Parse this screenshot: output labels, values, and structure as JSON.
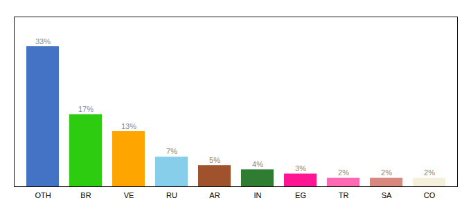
{
  "chart_data": {
    "type": "bar",
    "categories": [
      "OTH",
      "BR",
      "VE",
      "RU",
      "AR",
      "IN",
      "EG",
      "TR",
      "SA",
      "CO"
    ],
    "values": [
      33,
      17,
      13,
      7,
      5,
      4,
      3,
      2,
      2,
      2
    ],
    "value_labels": [
      "33%",
      "17%",
      "13%",
      "7%",
      "5%",
      "4%",
      "3%",
      "2%",
      "2%",
      "2%"
    ],
    "colors": [
      "#4472c4",
      "#2ecc11",
      "#ffa500",
      "#87ceeb",
      "#a0522d",
      "#2e7d32",
      "#ff1493",
      "#ff69b4",
      "#d98880",
      "#f5f0dc"
    ],
    "ylim": [
      0,
      40
    ],
    "data_labels": true,
    "tick_labels": "x",
    "grid": false
  }
}
